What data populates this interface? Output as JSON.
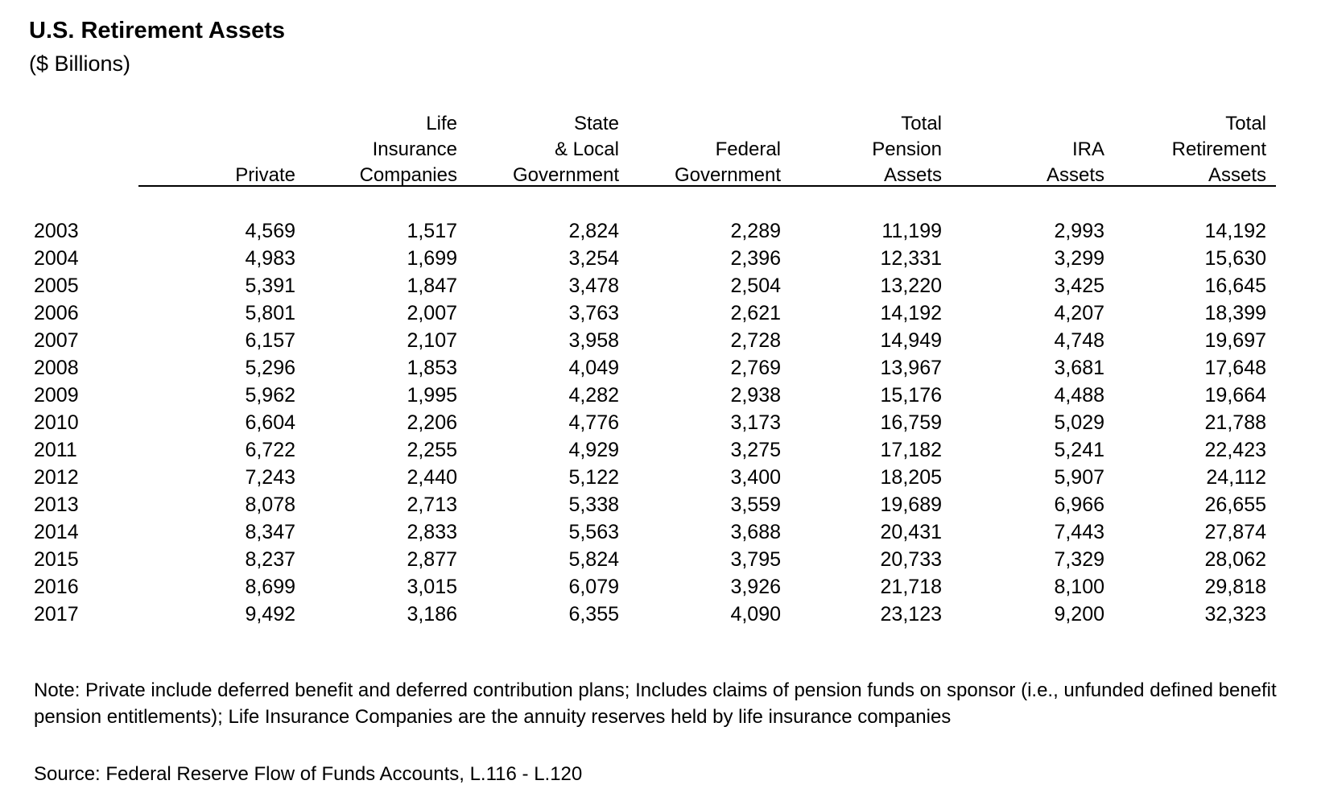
{
  "title": "U.S. Retirement Assets",
  "subtitle": "($ Billions)",
  "columns": [
    {
      "key": "private",
      "lines": [
        "",
        "",
        "Private"
      ]
    },
    {
      "key": "life_insurance",
      "lines": [
        "Life",
        "Insurance",
        "Companies"
      ]
    },
    {
      "key": "state_local",
      "lines": [
        "State",
        "& Local",
        "Government"
      ]
    },
    {
      "key": "federal",
      "lines": [
        "",
        "Federal",
        "Government"
      ]
    },
    {
      "key": "total_pension",
      "lines": [
        "Total",
        "Pension",
        "Assets"
      ]
    },
    {
      "key": "ira",
      "lines": [
        "",
        "IRA",
        "Assets"
      ]
    },
    {
      "key": "total_retirement",
      "lines": [
        "Total",
        "Retirement",
        "Assets"
      ]
    }
  ],
  "rows": [
    {
      "year": "2003",
      "values": [
        "4,569",
        "1,517",
        "2,824",
        "2,289",
        "11,199",
        "2,993",
        "14,192"
      ]
    },
    {
      "year": "2004",
      "values": [
        "4,983",
        "1,699",
        "3,254",
        "2,396",
        "12,331",
        "3,299",
        "15,630"
      ]
    },
    {
      "year": "2005",
      "values": [
        "5,391",
        "1,847",
        "3,478",
        "2,504",
        "13,220",
        "3,425",
        "16,645"
      ]
    },
    {
      "year": "2006",
      "values": [
        "5,801",
        "2,007",
        "3,763",
        "2,621",
        "14,192",
        "4,207",
        "18,399"
      ]
    },
    {
      "year": "2007",
      "values": [
        "6,157",
        "2,107",
        "3,958",
        "2,728",
        "14,949",
        "4,748",
        "19,697"
      ]
    },
    {
      "year": "2008",
      "values": [
        "5,296",
        "1,853",
        "4,049",
        "2,769",
        "13,967",
        "3,681",
        "17,648"
      ]
    },
    {
      "year": "2009",
      "values": [
        "5,962",
        "1,995",
        "4,282",
        "2,938",
        "15,176",
        "4,488",
        "19,664"
      ]
    },
    {
      "year": "2010",
      "values": [
        "6,604",
        "2,206",
        "4,776",
        "3,173",
        "16,759",
        "5,029",
        "21,788"
      ]
    },
    {
      "year": "2011",
      "values": [
        "6,722",
        "2,255",
        "4,929",
        "3,275",
        "17,182",
        "5,241",
        "22,423"
      ]
    },
    {
      "year": "2012",
      "values": [
        "7,243",
        "2,440",
        "5,122",
        "3,400",
        "18,205",
        "5,907",
        "24,112"
      ]
    },
    {
      "year": "2013",
      "values": [
        "8,078",
        "2,713",
        "5,338",
        "3,559",
        "19,689",
        "6,966",
        "26,655"
      ]
    },
    {
      "year": "2014",
      "values": [
        "8,347",
        "2,833",
        "5,563",
        "3,688",
        "20,431",
        "7,443",
        "27,874"
      ]
    },
    {
      "year": "2015",
      "values": [
        "8,237",
        "2,877",
        "5,824",
        "3,795",
        "20,733",
        "7,329",
        "28,062"
      ]
    },
    {
      "year": "2016",
      "values": [
        "8,699",
        "3,015",
        "6,079",
        "3,926",
        "21,718",
        "8,100",
        "29,818"
      ]
    },
    {
      "year": "2017",
      "values": [
        "9,492",
        "3,186",
        "6,355",
        "4,090",
        "23,123",
        "9,200",
        "32,323"
      ]
    }
  ],
  "note": "Note: Private include deferred benefit and deferred contribution plans; Includes claims of pension funds on sponsor (i.e., unfunded defined benefit pension entitlements); Life Insurance Companies are the annuity reserves held by life insurance companies",
  "source": "Source: Federal Reserve Flow of Funds Accounts, L.116 - L.120",
  "chart_data": {
    "type": "table",
    "title": "U.S. Retirement Assets",
    "subtitle": "($ Billions)",
    "row_header": "",
    "columns": [
      "Private",
      "Life Insurance Companies",
      "State & Local Government",
      "Federal Government",
      "Total Pension Assets",
      "IRA Assets",
      "Total Retirement Assets"
    ],
    "rows": [
      "2003",
      "2004",
      "2005",
      "2006",
      "2007",
      "2008",
      "2009",
      "2010",
      "2011",
      "2012",
      "2013",
      "2014",
      "2015",
      "2016",
      "2017"
    ],
    "values": [
      [
        4569,
        1517,
        2824,
        2289,
        11199,
        2993,
        14192
      ],
      [
        4983,
        1699,
        3254,
        2396,
        12331,
        3299,
        15630
      ],
      [
        5391,
        1847,
        3478,
        2504,
        13220,
        3425,
        16645
      ],
      [
        5801,
        2007,
        3763,
        2621,
        14192,
        4207,
        18399
      ],
      [
        6157,
        2107,
        3958,
        2728,
        14949,
        4748,
        19697
      ],
      [
        5296,
        1853,
        4049,
        2769,
        13967,
        3681,
        17648
      ],
      [
        5962,
        1995,
        4282,
        2938,
        15176,
        4488,
        19664
      ],
      [
        6604,
        2206,
        4776,
        3173,
        16759,
        5029,
        21788
      ],
      [
        6722,
        2255,
        4929,
        3275,
        17182,
        5241,
        22423
      ],
      [
        7243,
        2440,
        5122,
        3400,
        18205,
        5907,
        24112
      ],
      [
        8078,
        2713,
        5338,
        3559,
        19689,
        6966,
        26655
      ],
      [
        8347,
        2833,
        5563,
        3688,
        20431,
        7443,
        27874
      ],
      [
        8237,
        2877,
        5824,
        3795,
        20733,
        7329,
        28062
      ],
      [
        8699,
        3015,
        6079,
        3926,
        21718,
        8100,
        29818
      ],
      [
        9492,
        3186,
        6355,
        4090,
        23123,
        9200,
        32323
      ]
    ]
  }
}
